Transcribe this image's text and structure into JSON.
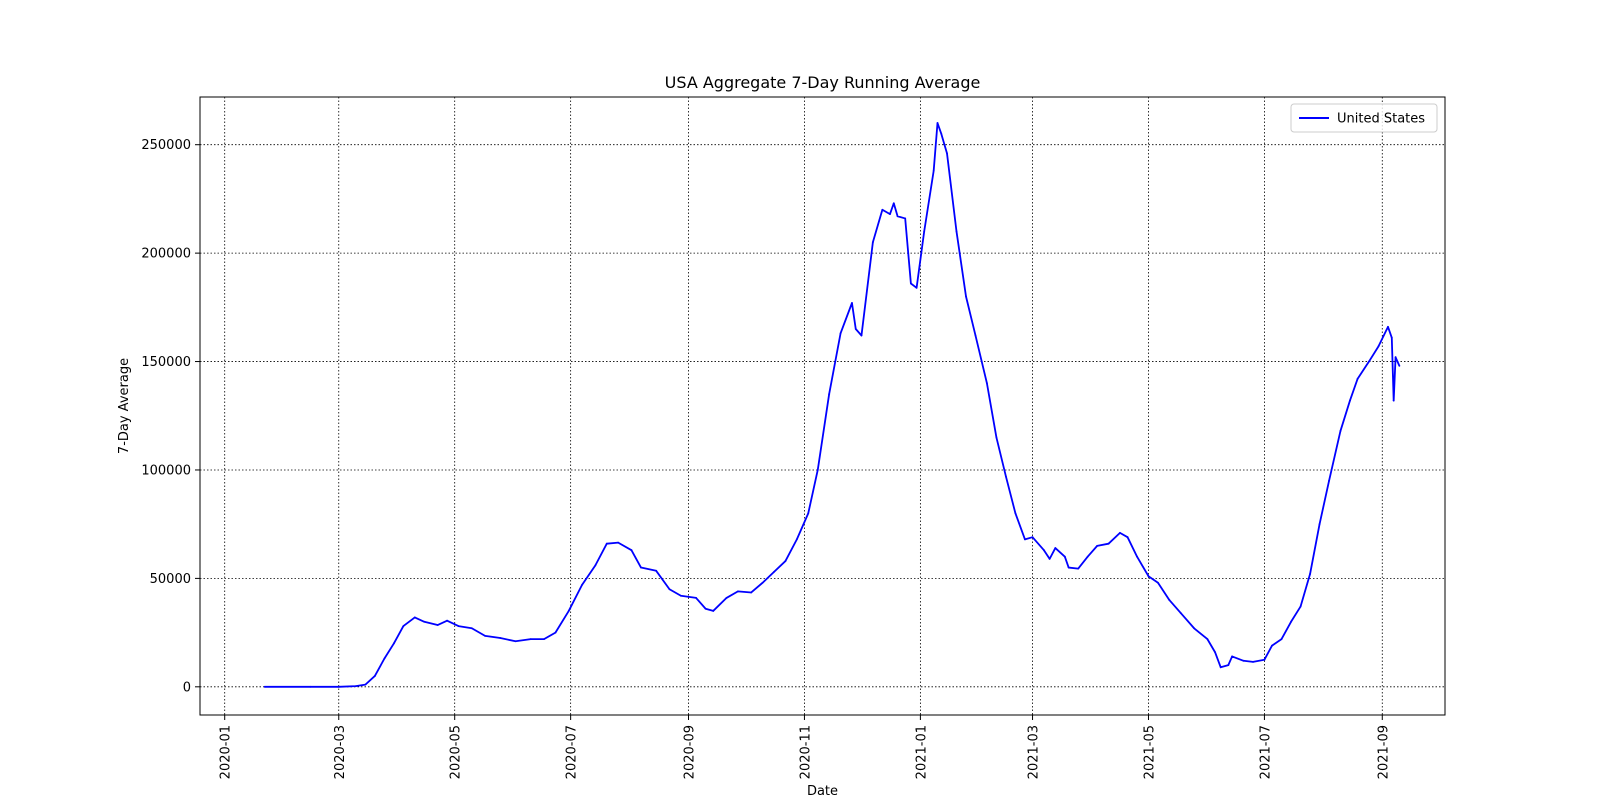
{
  "chart_data": {
    "type": "line",
    "title": "USA Aggregate 7-Day Running Average",
    "xlabel": "Date",
    "ylabel": "7-Day Average",
    "xlim": [
      "2019-12-19",
      "2021-10-04"
    ],
    "ylim": [
      -13000,
      272000
    ],
    "grid": true,
    "grid_style": "dotted",
    "legend_position": "top-right",
    "x_ticks": [
      "2020-01",
      "2020-03",
      "2020-05",
      "2020-07",
      "2020-09",
      "2020-11",
      "2021-01",
      "2021-03",
      "2021-05",
      "2021-07",
      "2021-09"
    ],
    "y_ticks": [
      0,
      50000,
      100000,
      150000,
      200000,
      250000
    ],
    "y_tick_labels": [
      "0",
      "50000",
      "100000",
      "150000",
      "200000",
      "250000"
    ],
    "series": [
      {
        "name": "United States",
        "color": "#0000ff",
        "points": [
          [
            "2020-01-22",
            0
          ],
          [
            "2020-02-15",
            0
          ],
          [
            "2020-03-01",
            0
          ],
          [
            "2020-03-10",
            300
          ],
          [
            "2020-03-15",
            1000
          ],
          [
            "2020-03-20",
            5000
          ],
          [
            "2020-03-25",
            13000
          ],
          [
            "2020-03-30",
            20000
          ],
          [
            "2020-04-04",
            28000
          ],
          [
            "2020-04-10",
            32000
          ],
          [
            "2020-04-15",
            30000
          ],
          [
            "2020-04-22",
            28500
          ],
          [
            "2020-04-27",
            30500
          ],
          [
            "2020-05-03",
            28000
          ],
          [
            "2020-05-10",
            27000
          ],
          [
            "2020-05-17",
            23500
          ],
          [
            "2020-05-25",
            22500
          ],
          [
            "2020-06-02",
            21000
          ],
          [
            "2020-06-10",
            22000
          ],
          [
            "2020-06-17",
            22000
          ],
          [
            "2020-06-23",
            25000
          ],
          [
            "2020-06-30",
            35000
          ],
          [
            "2020-07-07",
            47000
          ],
          [
            "2020-07-14",
            56000
          ],
          [
            "2020-07-20",
            66000
          ],
          [
            "2020-07-26",
            66500
          ],
          [
            "2020-08-02",
            63000
          ],
          [
            "2020-08-07",
            55000
          ],
          [
            "2020-08-15",
            53500
          ],
          [
            "2020-08-22",
            45000
          ],
          [
            "2020-08-28",
            42000
          ],
          [
            "2020-09-05",
            41000
          ],
          [
            "2020-09-10",
            36000
          ],
          [
            "2020-09-14",
            35000
          ],
          [
            "2020-09-21",
            41000
          ],
          [
            "2020-09-27",
            44000
          ],
          [
            "2020-10-04",
            43500
          ],
          [
            "2020-10-10",
            48000
          ],
          [
            "2020-10-16",
            53000
          ],
          [
            "2020-10-22",
            58000
          ],
          [
            "2020-10-28",
            68000
          ],
          [
            "2020-11-03",
            80000
          ],
          [
            "2020-11-08",
            100000
          ],
          [
            "2020-11-14",
            135000
          ],
          [
            "2020-11-20",
            163000
          ],
          [
            "2020-11-26",
            177000
          ],
          [
            "2020-11-28",
            165000
          ],
          [
            "2020-12-01",
            162000
          ],
          [
            "2020-12-07",
            205000
          ],
          [
            "2020-12-12",
            220000
          ],
          [
            "2020-12-16",
            218000
          ],
          [
            "2020-12-18",
            223000
          ],
          [
            "2020-12-20",
            217000
          ],
          [
            "2020-12-24",
            216000
          ],
          [
            "2020-12-27",
            186000
          ],
          [
            "2020-12-30",
            184000
          ],
          [
            "2021-01-03",
            210000
          ],
          [
            "2021-01-08",
            238000
          ],
          [
            "2021-01-10",
            260000
          ],
          [
            "2021-01-12",
            255000
          ],
          [
            "2021-01-15",
            246000
          ],
          [
            "2021-01-20",
            210000
          ],
          [
            "2021-01-25",
            180000
          ],
          [
            "2021-01-30",
            162000
          ],
          [
            "2021-02-05",
            140000
          ],
          [
            "2021-02-10",
            115000
          ],
          [
            "2021-02-15",
            97000
          ],
          [
            "2021-02-20",
            80000
          ],
          [
            "2021-02-25",
            68000
          ],
          [
            "2021-03-01",
            69000
          ],
          [
            "2021-03-07",
            63000
          ],
          [
            "2021-03-10",
            59000
          ],
          [
            "2021-03-13",
            64000
          ],
          [
            "2021-03-18",
            60000
          ],
          [
            "2021-03-20",
            55000
          ],
          [
            "2021-03-25",
            54500
          ],
          [
            "2021-03-30",
            60000
          ],
          [
            "2021-04-04",
            65000
          ],
          [
            "2021-04-10",
            66000
          ],
          [
            "2021-04-16",
            71000
          ],
          [
            "2021-04-20",
            69000
          ],
          [
            "2021-04-25",
            60000
          ],
          [
            "2021-05-01",
            51000
          ],
          [
            "2021-05-06",
            48000
          ],
          [
            "2021-05-12",
            40000
          ],
          [
            "2021-05-18",
            34000
          ],
          [
            "2021-05-25",
            27000
          ],
          [
            "2021-06-01",
            22000
          ],
          [
            "2021-06-05",
            16000
          ],
          [
            "2021-06-08",
            9000
          ],
          [
            "2021-06-12",
            10000
          ],
          [
            "2021-06-14",
            14000
          ],
          [
            "2021-06-20",
            12000
          ],
          [
            "2021-06-25",
            11500
          ],
          [
            "2021-07-01",
            12500
          ],
          [
            "2021-07-05",
            19000
          ],
          [
            "2021-07-10",
            22000
          ],
          [
            "2021-07-15",
            30000
          ],
          [
            "2021-07-20",
            37000
          ],
          [
            "2021-07-25",
            52000
          ],
          [
            "2021-07-30",
            75000
          ],
          [
            "2021-08-04",
            95000
          ],
          [
            "2021-08-10",
            118000
          ],
          [
            "2021-08-15",
            132000
          ],
          [
            "2021-08-19",
            142000
          ],
          [
            "2021-08-25",
            150000
          ],
          [
            "2021-08-30",
            157000
          ],
          [
            "2021-09-04",
            166000
          ],
          [
            "2021-09-06",
            161000
          ],
          [
            "2021-09-07",
            132000
          ],
          [
            "2021-09-08",
            152000
          ],
          [
            "2021-09-10",
            148000
          ]
        ]
      }
    ]
  }
}
